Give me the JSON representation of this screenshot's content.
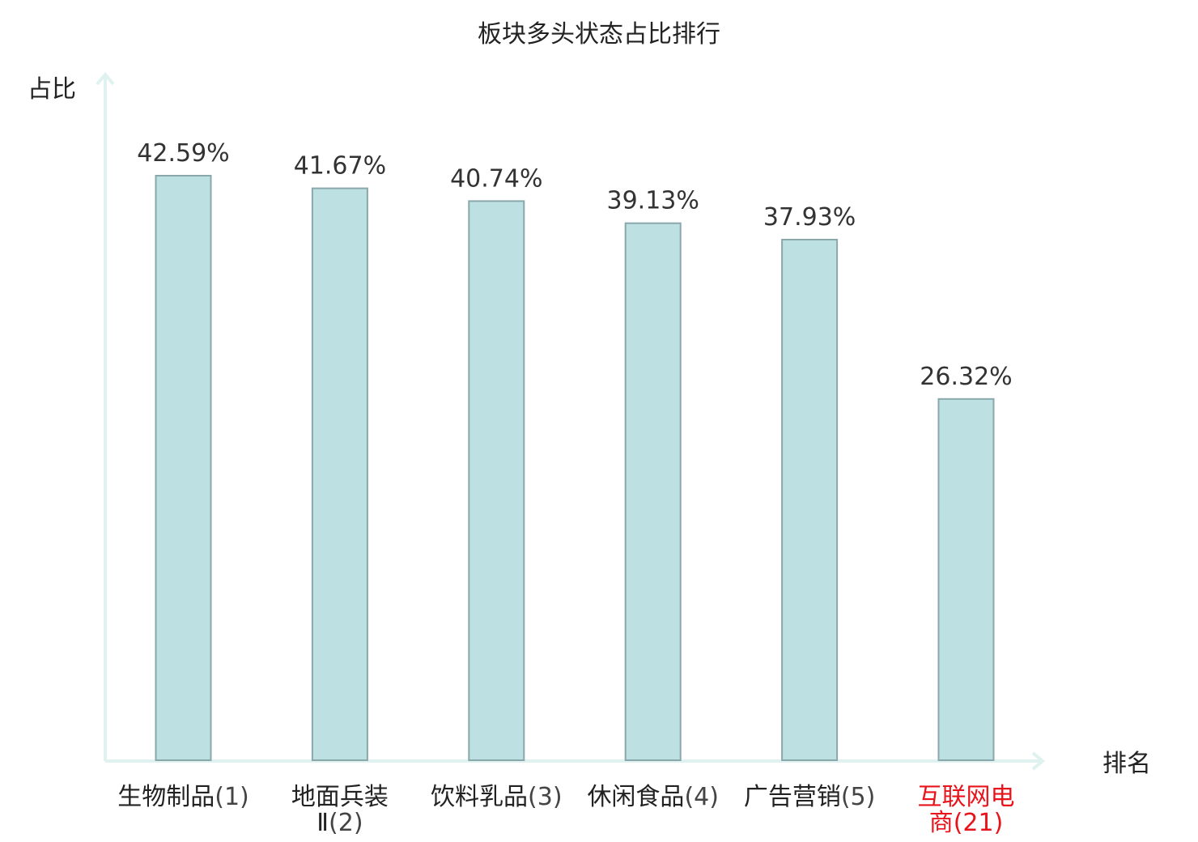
{
  "chart_data": {
    "type": "bar",
    "title": "板块多头状态占比排行",
    "ylabel": "占比",
    "xlabel": "排名",
    "categories": [
      {
        "name": [
          "生物制品"
        ],
        "rank": "(1)",
        "highlight": false
      },
      {
        "name": [
          "地面兵装",
          "Ⅱ"
        ],
        "rank": "(2)",
        "highlight": false
      },
      {
        "name": [
          "饮料乳品"
        ],
        "rank": "(3)",
        "highlight": false
      },
      {
        "name": [
          "休闲食品"
        ],
        "rank": "(4)",
        "highlight": false
      },
      {
        "name": [
          "广告营销"
        ],
        "rank": "(5)",
        "highlight": false
      },
      {
        "name": [
          "互联网电",
          "商"
        ],
        "rank": "(21)",
        "highlight": true
      }
    ],
    "values": [
      42.59,
      41.67,
      40.74,
      39.13,
      37.93,
      26.32
    ],
    "value_labels": [
      "42.59%",
      "41.67%",
      "40.74%",
      "39.13%",
      "37.93%",
      "26.32%"
    ],
    "ylim": [
      0,
      43.5
    ],
    "grid": false,
    "legend": "none"
  },
  "colors": {
    "bar_fill": "#bde0e3",
    "bar_stroke": "#8aa8ab",
    "axis": "#e0f2f0",
    "text": "#222222",
    "highlight": "#e8141c",
    "rank_text": "#444444"
  }
}
